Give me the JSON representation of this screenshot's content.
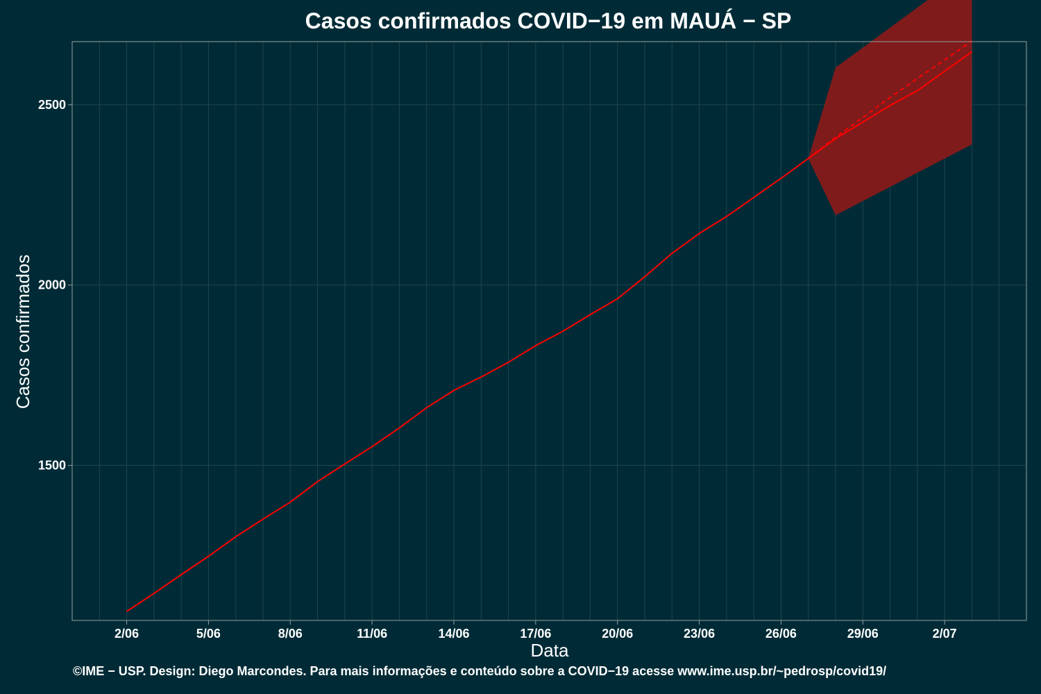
{
  "chart_data": {
    "type": "line",
    "title": "Casos confirmados COVID−19 em MAUÁ − SP",
    "xlabel": "Data",
    "ylabel": "Casos confirmados",
    "x_tick_labels": [
      "2/06",
      "5/06",
      "8/06",
      "11/06",
      "14/06",
      "17/06",
      "20/06",
      "23/06",
      "26/06",
      "29/06",
      "2/07"
    ],
    "y_ticks": [
      1500,
      2000,
      2500
    ],
    "xlim": [
      "2020-05-31",
      "2020-07-05"
    ],
    "ylim": [
      1070,
      2675
    ],
    "grid": true,
    "colors": {
      "background": "#002b36",
      "line": "#ff0000",
      "band": "#8b1a1a",
      "grid": "#1e4550",
      "border": "#93a1a1"
    },
    "series": [
      {
        "style": "solid",
        "x": [
          "2020-06-02",
          "2020-06-03",
          "2020-06-04",
          "2020-06-05",
          "2020-06-06",
          "2020-06-07",
          "2020-06-08",
          "2020-06-09",
          "2020-06-10",
          "2020-06-11",
          "2020-06-12",
          "2020-06-13",
          "2020-06-14",
          "2020-06-15",
          "2020-06-16",
          "2020-06-17",
          "2020-06-18",
          "2020-06-19",
          "2020-06-20",
          "2020-06-21",
          "2020-06-22",
          "2020-06-23",
          "2020-06-24",
          "2020-06-25",
          "2020-06-26",
          "2020-06-27",
          "2020-06-28",
          "2020-06-29",
          "2020-06-30",
          "2020-07-01",
          "2020-07-02",
          "2020-07-03"
        ],
        "y": [
          1095,
          1145,
          1197,
          1248,
          1302,
          1351,
          1398,
          1455,
          1504,
          1552,
          1604,
          1660,
          1708,
          1745,
          1786,
          1832,
          1872,
          1918,
          1962,
          2023,
          2088,
          2143,
          2190,
          2243,
          2296,
          2351,
          2406,
          2452,
          2498,
          2539,
          2593,
          2647
        ]
      },
      {
        "style": "dashed",
        "x": [
          "2020-06-27",
          "2020-06-28",
          "2020-06-29",
          "2020-06-30",
          "2020-07-01",
          "2020-07-02",
          "2020-07-03"
        ],
        "y": [
          2351,
          2410,
          2465,
          2520,
          2573,
          2624,
          2677
        ]
      }
    ],
    "band": {
      "x": [
        "2020-06-27",
        "2020-06-28",
        "2020-07-03"
      ],
      "lower": [
        2351,
        2194,
        2390
      ],
      "upper": [
        2351,
        2603,
        2880
      ]
    }
  },
  "footer": "©IME − USP. Design: Diego Marcondes. Para mais informações e conteúdo sobre a COVID−19 acesse www.ime.usp.br/~pedrosp/covid19/"
}
